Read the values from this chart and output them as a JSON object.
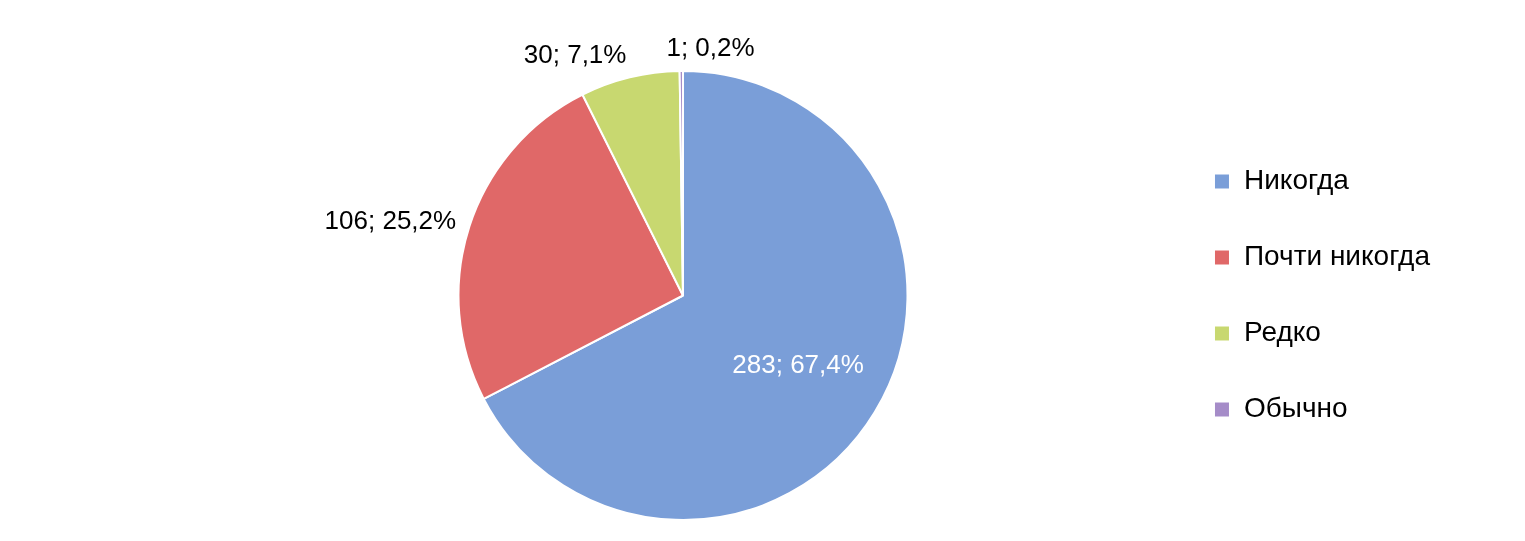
{
  "chart_data": {
    "type": "pie",
    "categories": [
      "Никогда",
      "Почти никогда",
      "Редко",
      "Обычно"
    ],
    "values": [
      283,
      106,
      30,
      1
    ],
    "colors": [
      "#7a9ed8",
      "#e06868",
      "#c8d870",
      "#a58cc8"
    ],
    "value_labels": [
      "283; 67,4%",
      "106; 25,2%",
      "30; 7,1%",
      "1; 0,2%"
    ],
    "legend": "right"
  }
}
